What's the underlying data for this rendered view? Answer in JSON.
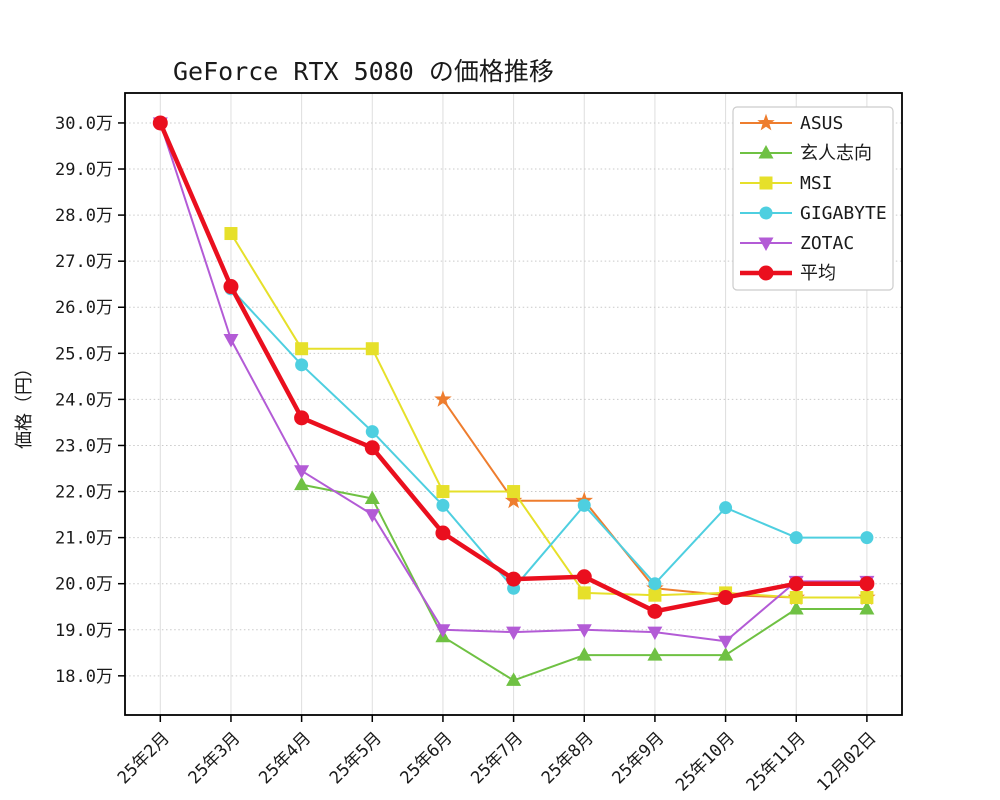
{
  "chart_data": {
    "type": "line",
    "title": "GeForce RTX 5080 の価格推移",
    "xlabel": "",
    "ylabel": "価格（円）",
    "y_unit": "万",
    "categories": [
      "25年2月",
      "25年3月",
      "25年4月",
      "25年5月",
      "25年6月",
      "25年7月",
      "25年8月",
      "25年9月",
      "25年10月",
      "25年11月",
      "12月02日"
    ],
    "y_tick_values": [
      18,
      19,
      20,
      21,
      22,
      23,
      24,
      25,
      26,
      27,
      28,
      29,
      30
    ],
    "y_tick_labels": [
      "18.0万",
      "19.0万",
      "20.0万",
      "21.0万",
      "22.0万",
      "23.0万",
      "24.0万",
      "25.0万",
      "26.0万",
      "27.0万",
      "28.0万",
      "29.0万",
      "30.0万"
    ],
    "ylim": [
      17.15,
      30.65
    ],
    "x_tick_rotation": 45,
    "grid": true,
    "legend_position": "upper right",
    "legend_labels": [
      "ASUS",
      "玄人志向",
      "MSI",
      "GIGABYTE",
      "ZOTAC",
      "平均"
    ],
    "series": [
      {
        "name": "ASUS",
        "color": "#ee7d2e",
        "marker": "star",
        "line_width": 2,
        "values": [
          null,
          null,
          null,
          null,
          24.0,
          21.8,
          21.8,
          19.9,
          19.75,
          19.7,
          19.7
        ]
      },
      {
        "name": "玄人志向",
        "color": "#6fc143",
        "marker": "triangle-up",
        "line_width": 2,
        "values": [
          null,
          null,
          22.15,
          21.85,
          18.85,
          17.9,
          18.45,
          18.45,
          18.45,
          19.45,
          19.45
        ]
      },
      {
        "name": "MSI",
        "color": "#e6e02a",
        "marker": "square",
        "line_width": 2,
        "values": [
          null,
          27.6,
          25.1,
          25.1,
          22.0,
          22.0,
          19.8,
          19.75,
          19.8,
          19.7,
          19.7
        ]
      },
      {
        "name": "GIGABYTE",
        "color": "#4ecfe0",
        "marker": "circle",
        "line_width": 2,
        "values": [
          30.0,
          26.4,
          24.75,
          23.3,
          21.7,
          19.9,
          21.7,
          20.0,
          21.65,
          21.0,
          21.0
        ]
      },
      {
        "name": "ZOTAC",
        "color": "#b35bd6",
        "marker": "triangle-down",
        "line_width": 2,
        "values": [
          30.0,
          25.3,
          22.45,
          21.5,
          19.0,
          18.95,
          19.0,
          18.95,
          18.75,
          20.05,
          20.05
        ]
      },
      {
        "name": "平均",
        "color": "#ea0f1e",
        "marker": "circle",
        "line_width": 4.5,
        "values": [
          30.0,
          26.45,
          23.6,
          22.95,
          21.1,
          20.1,
          20.15,
          19.4,
          19.7,
          20.0,
          20.0
        ]
      }
    ]
  }
}
